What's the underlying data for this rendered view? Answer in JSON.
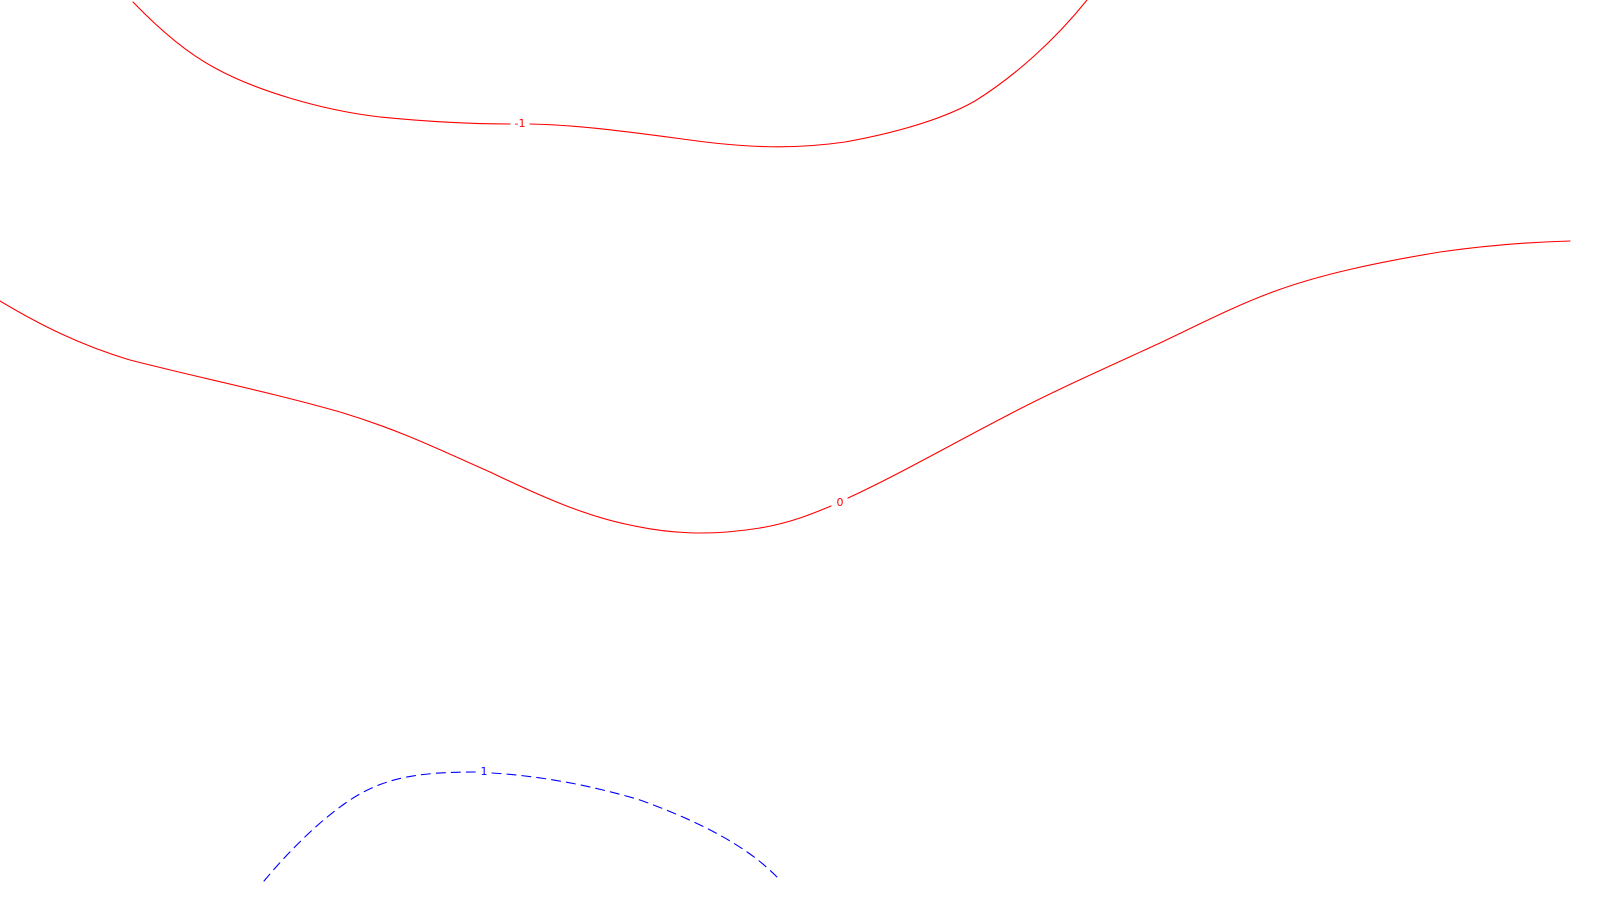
{
  "map": {
    "contours": [
      {
        "id": "neg1",
        "level_label": "-1",
        "color": "#ff0000",
        "style": "solid"
      },
      {
        "id": "zero",
        "level_label": "0",
        "color": "#ff0000",
        "style": "solid"
      },
      {
        "id": "pos1",
        "level_label": "1",
        "color": "#0000ff",
        "style": "dashed"
      }
    ]
  }
}
